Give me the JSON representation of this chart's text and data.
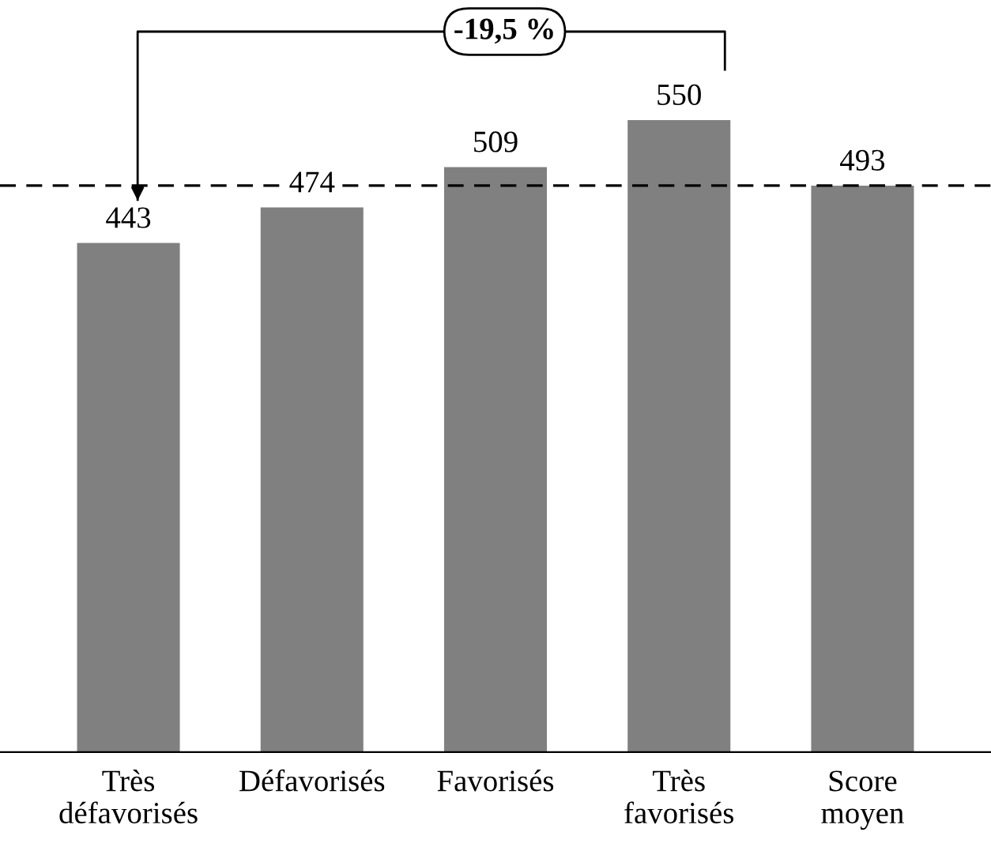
{
  "chart_data": {
    "type": "bar",
    "categories": [
      "Très\ndéfavorisés",
      "Défavorisés",
      "Favorisés",
      "Très\nfavorisés",
      "Score\nmoyen"
    ],
    "values": [
      443,
      474,
      509,
      550,
      493
    ],
    "color": "#808080",
    "data_labels": true,
    "grid": false,
    "legend": false,
    "ref_lines": [
      {
        "axis": "y",
        "value": 493,
        "color": "#000000",
        "line_style": "dashed"
      }
    ],
    "annotations": [
      "-19,5 %"
    ]
  }
}
